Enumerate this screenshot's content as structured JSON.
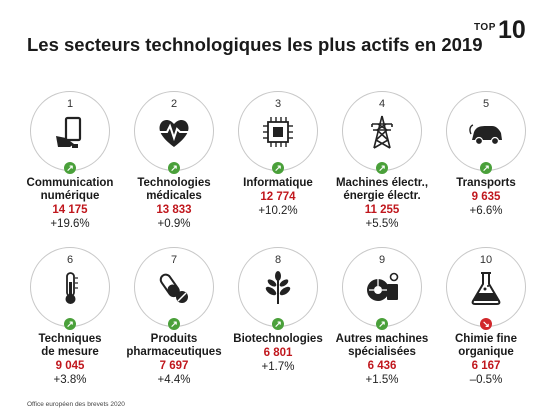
{
  "header": {
    "title": "Les secteurs technologiques les plus actifs en 2019",
    "badge_top": "TOP",
    "badge_num": "10"
  },
  "chart_data": {
    "type": "table",
    "title": "Les secteurs technologiques les plus actifs en 2019",
    "rows": [
      {
        "rank": "1",
        "name_lines": [
          "Communication",
          "numérique"
        ],
        "value": "14 175",
        "change": "+19.6%",
        "trend": "up",
        "icon": "hand-tablet-icon"
      },
      {
        "rank": "2",
        "name_lines": [
          "Technologies",
          "médicales"
        ],
        "value": "13 833",
        "change": "+0.9%",
        "trend": "up",
        "icon": "heart-pulse-icon"
      },
      {
        "rank": "3",
        "name_lines": [
          "Informatique"
        ],
        "value": "12 774",
        "change": "+10.2%",
        "trend": "up",
        "icon": "chip-icon"
      },
      {
        "rank": "4",
        "name_lines": [
          "Machines électr.,",
          "énergie électr."
        ],
        "value": "11 255",
        "change": "+5.5%",
        "trend": "up",
        "icon": "power-pylon-icon"
      },
      {
        "rank": "5",
        "name_lines": [
          "Transports"
        ],
        "value": "9 635",
        "change": "+6.6%",
        "trend": "up",
        "icon": "electric-car-icon"
      },
      {
        "rank": "6",
        "name_lines": [
          "Techniques",
          "de mesure"
        ],
        "value": "9 045",
        "change": "+3.8%",
        "trend": "up",
        "icon": "thermometer-icon"
      },
      {
        "rank": "7",
        "name_lines": [
          "Produits",
          "pharmaceutiques"
        ],
        "value": "7 697",
        "change": "+4.4%",
        "trend": "up",
        "icon": "pills-icon"
      },
      {
        "rank": "8",
        "name_lines": [
          "Biotechnologies"
        ],
        "value": "6 801",
        "change": "+1.7%",
        "trend": "up",
        "icon": "plant-icon"
      },
      {
        "rank": "9",
        "name_lines": [
          "Autres machines",
          "spécialisées"
        ],
        "value": "6 436",
        "change": "+1.5%",
        "trend": "up",
        "icon": "machine-gears-icon"
      },
      {
        "rank": "10",
        "name_lines": [
          "Chimie fine",
          "organique"
        ],
        "value": "6 167",
        "change": "–0.5%",
        "trend": "down",
        "icon": "flask-icon"
      }
    ]
  },
  "colors": {
    "value": "#c0171d",
    "trend_up": "#4aa03a",
    "trend_down": "#d1272b"
  },
  "footer": {
    "source": "Office européen des brevets 2020"
  }
}
